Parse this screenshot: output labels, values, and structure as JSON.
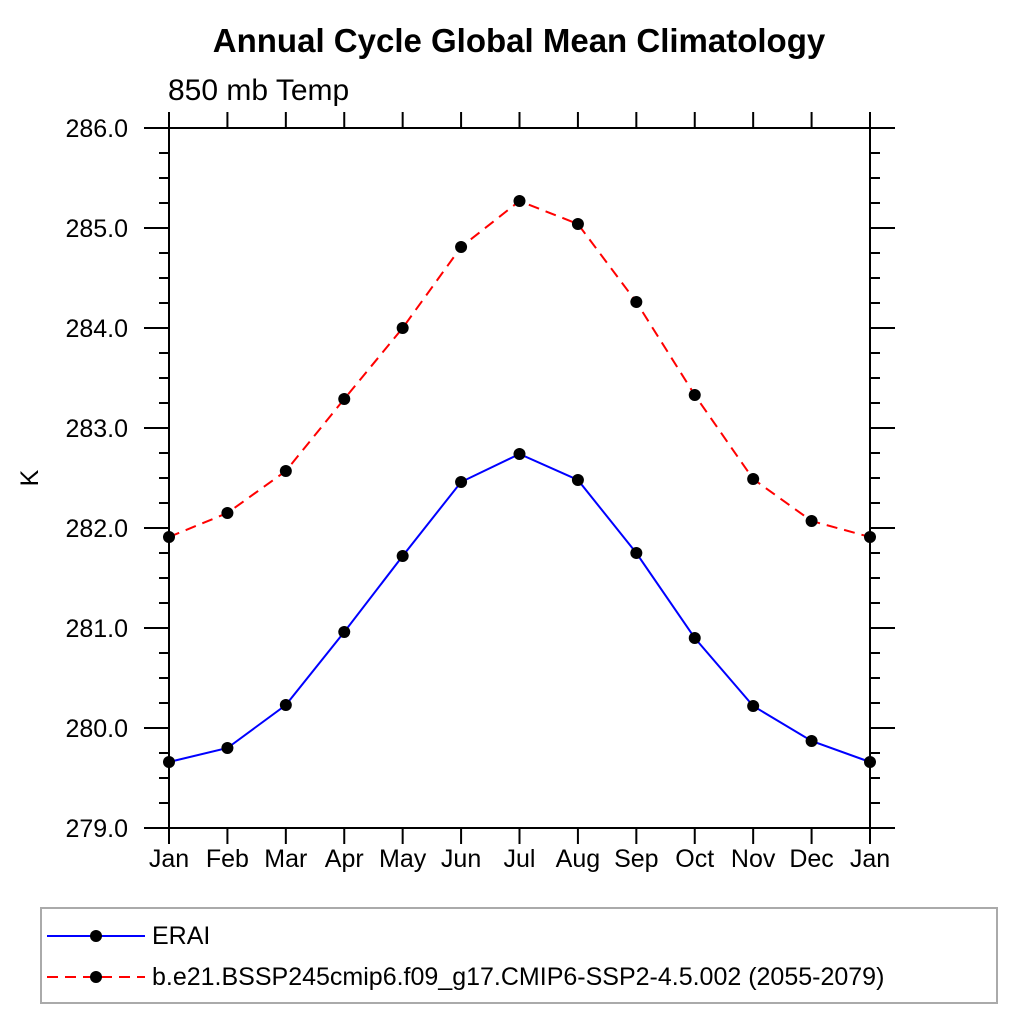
{
  "page": {
    "background": "#ffffff"
  },
  "colors": {
    "axis": "#000000",
    "text": "#000000",
    "marker": "#000000",
    "legend_border": "#aaaaaa",
    "series_blue": "#0000ff",
    "series_red": "#ff0000"
  },
  "chart_data": {
    "type": "line",
    "title": "Annual Cycle Global Mean Climatology",
    "subtitle": "850 mb Temp",
    "xlabel": "",
    "ylabel": "K",
    "categories": [
      "Jan",
      "Feb",
      "Mar",
      "Apr",
      "May",
      "Jun",
      "Jul",
      "Aug",
      "Sep",
      "Oct",
      "Nov",
      "Dec",
      "Jan"
    ],
    "ylim": [
      279.0,
      286.0
    ],
    "ytick_step": 1.0,
    "ytick_minor_step": 0.25,
    "ytick_labels": [
      "279.0",
      "280.0",
      "281.0",
      "282.0",
      "283.0",
      "284.0",
      "285.0",
      "286.0"
    ],
    "grid": false,
    "legend_position": "bottom-left-box",
    "series": [
      {
        "name": "ERAI",
        "color": "#0000ff",
        "line_style": "solid",
        "marker": "filled-circle",
        "marker_color": "#000000",
        "values": [
          279.66,
          279.8,
          280.23,
          280.96,
          281.72,
          282.46,
          282.74,
          282.48,
          281.75,
          280.9,
          280.22,
          279.87,
          279.66
        ]
      },
      {
        "name": "b.e21.BSSP245cmip6.f09_g17.CMIP6-SSP2-4.5.002 (2055-2079)",
        "color": "#ff0000",
        "line_style": "dashed",
        "marker": "filled-circle",
        "marker_color": "#000000",
        "values": [
          281.91,
          282.15,
          282.57,
          283.29,
          284.0,
          284.81,
          285.27,
          285.04,
          284.26,
          283.33,
          282.49,
          282.07,
          281.91
        ]
      }
    ]
  }
}
